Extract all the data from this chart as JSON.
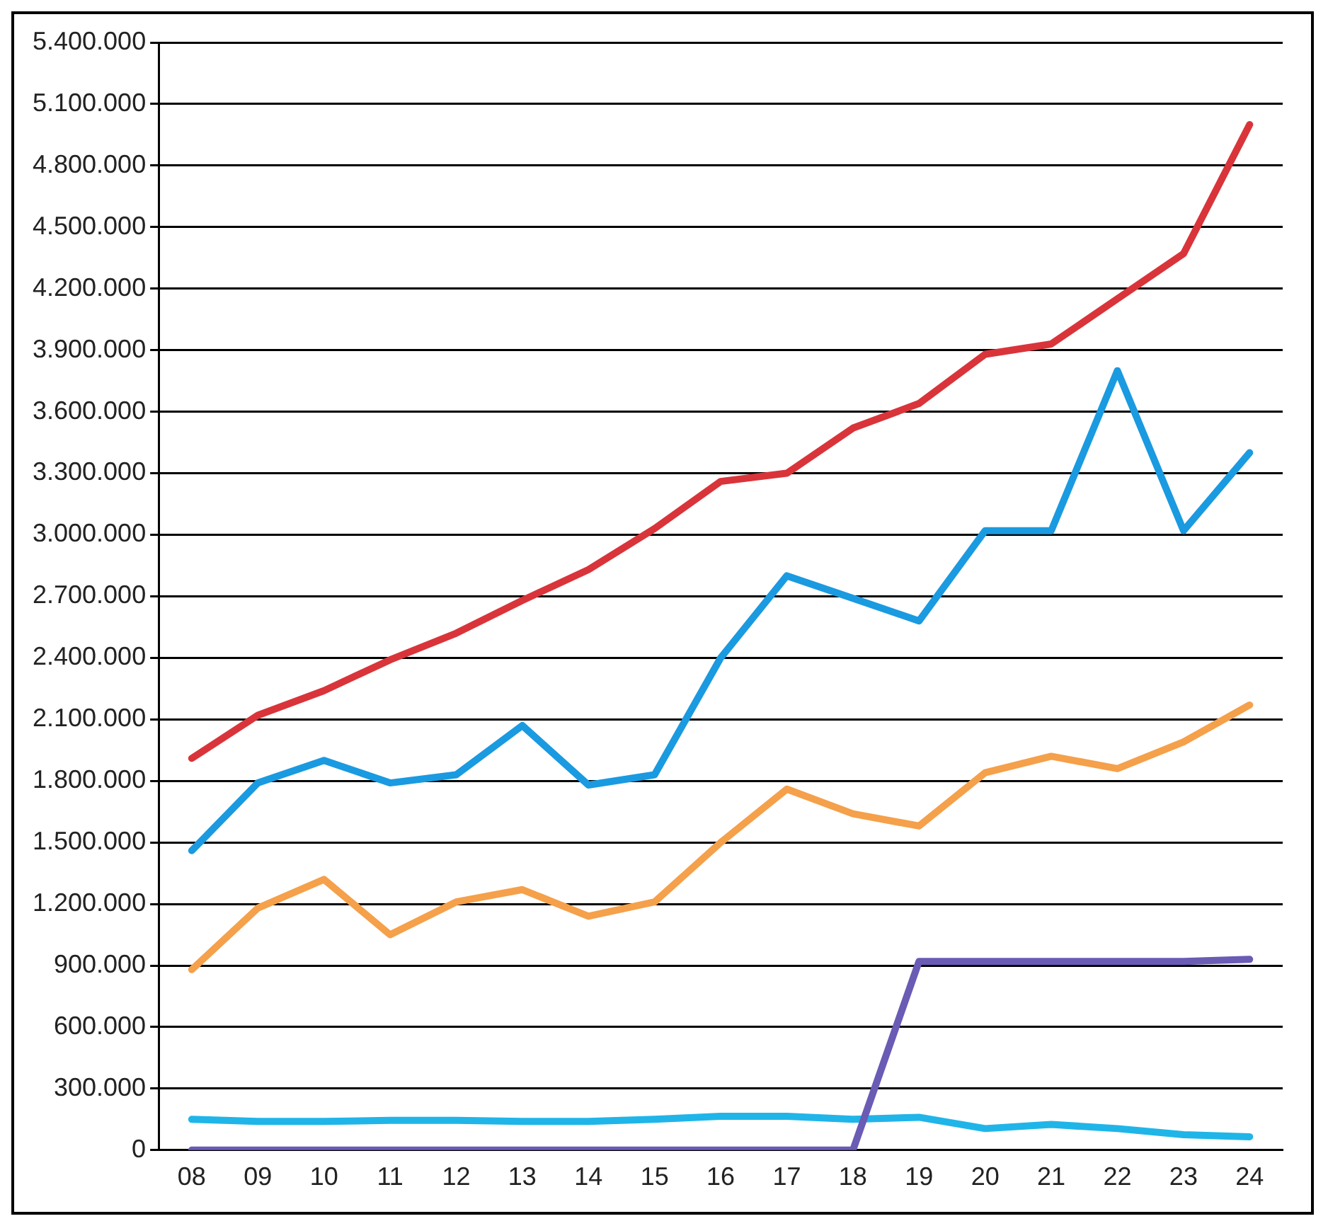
{
  "chart_data": {
    "type": "line",
    "categories": [
      "08",
      "09",
      "10",
      "11",
      "12",
      "13",
      "14",
      "15",
      "16",
      "17",
      "18",
      "19",
      "20",
      "21",
      "22",
      "23",
      "24"
    ],
    "series": [
      {
        "color": "#d9343a",
        "values": [
          1910000,
          2120000,
          2240000,
          2390000,
          2520000,
          2680000,
          2830000,
          3030000,
          3260000,
          3300000,
          3520000,
          3640000,
          3880000,
          3930000,
          4150000,
          4370000,
          5000000
        ]
      },
      {
        "color": "#1a9ae0",
        "values": [
          1460000,
          1790000,
          1900000,
          1790000,
          1830000,
          2070000,
          1780000,
          1830000,
          2400000,
          2800000,
          2690000,
          2580000,
          3020000,
          3020000,
          3800000,
          3020000,
          3400000
        ]
      },
      {
        "color": "#f5a04a",
        "values": [
          880000,
          1180000,
          1320000,
          1050000,
          1210000,
          1270000,
          1140000,
          1210000,
          1500000,
          1760000,
          1640000,
          1580000,
          1840000,
          1920000,
          1860000,
          1990000,
          2170000
        ]
      },
      {
        "color": "#6a5bb5",
        "values": [
          0,
          0,
          0,
          0,
          0,
          0,
          0,
          0,
          0,
          0,
          0,
          920000,
          920000,
          920000,
          920000,
          920000,
          930000
        ]
      },
      {
        "color": "#20b5e8",
        "values": [
          150000,
          140000,
          140000,
          145000,
          145000,
          140000,
          140000,
          150000,
          165000,
          165000,
          150000,
          160000,
          105000,
          125000,
          105000,
          75000,
          65000
        ]
      }
    ],
    "ylim": [
      0,
      5400000
    ],
    "yticks": [
      {
        "value": 0,
        "label": "0"
      },
      {
        "value": 300000,
        "label": "300.000"
      },
      {
        "value": 600000,
        "label": "600.000"
      },
      {
        "value": 900000,
        "label": "900.000"
      },
      {
        "value": 1200000,
        "label": "1.200.000"
      },
      {
        "value": 1500000,
        "label": "1.500.000"
      },
      {
        "value": 1800000,
        "label": "1.800.000"
      },
      {
        "value": 2100000,
        "label": "2.100.000"
      },
      {
        "value": 2400000,
        "label": "2.400.000"
      },
      {
        "value": 2700000,
        "label": "2.700.000"
      },
      {
        "value": 3000000,
        "label": "3.000.000"
      },
      {
        "value": 3300000,
        "label": "3.300.000"
      },
      {
        "value": 3600000,
        "label": "3.600.000"
      },
      {
        "value": 3900000,
        "label": "3.900.000"
      },
      {
        "value": 4200000,
        "label": "4.200.000"
      },
      {
        "value": 4500000,
        "label": "4.500.000"
      },
      {
        "value": 4800000,
        "label": "4.800.000"
      },
      {
        "value": 5100000,
        "label": "5.100.000"
      },
      {
        "value": 5400000,
        "label": "5.400.000"
      }
    ],
    "grid": "y",
    "marker": "none",
    "line_style": "solid"
  }
}
